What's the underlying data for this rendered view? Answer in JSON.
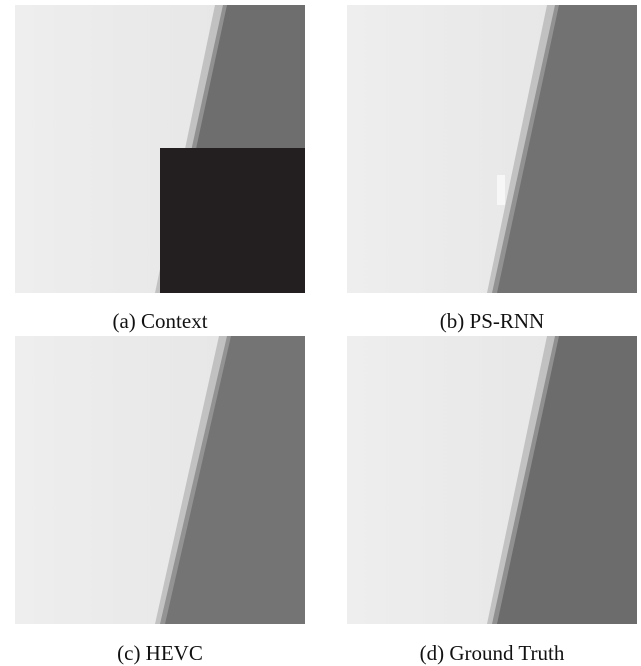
{
  "figure": {
    "panels": [
      {
        "caption": "(a) Context"
      },
      {
        "caption": "(b) PS-RNN"
      },
      {
        "caption": "(c) HEVC"
      },
      {
        "caption": "(d) Ground Truth"
      }
    ]
  }
}
